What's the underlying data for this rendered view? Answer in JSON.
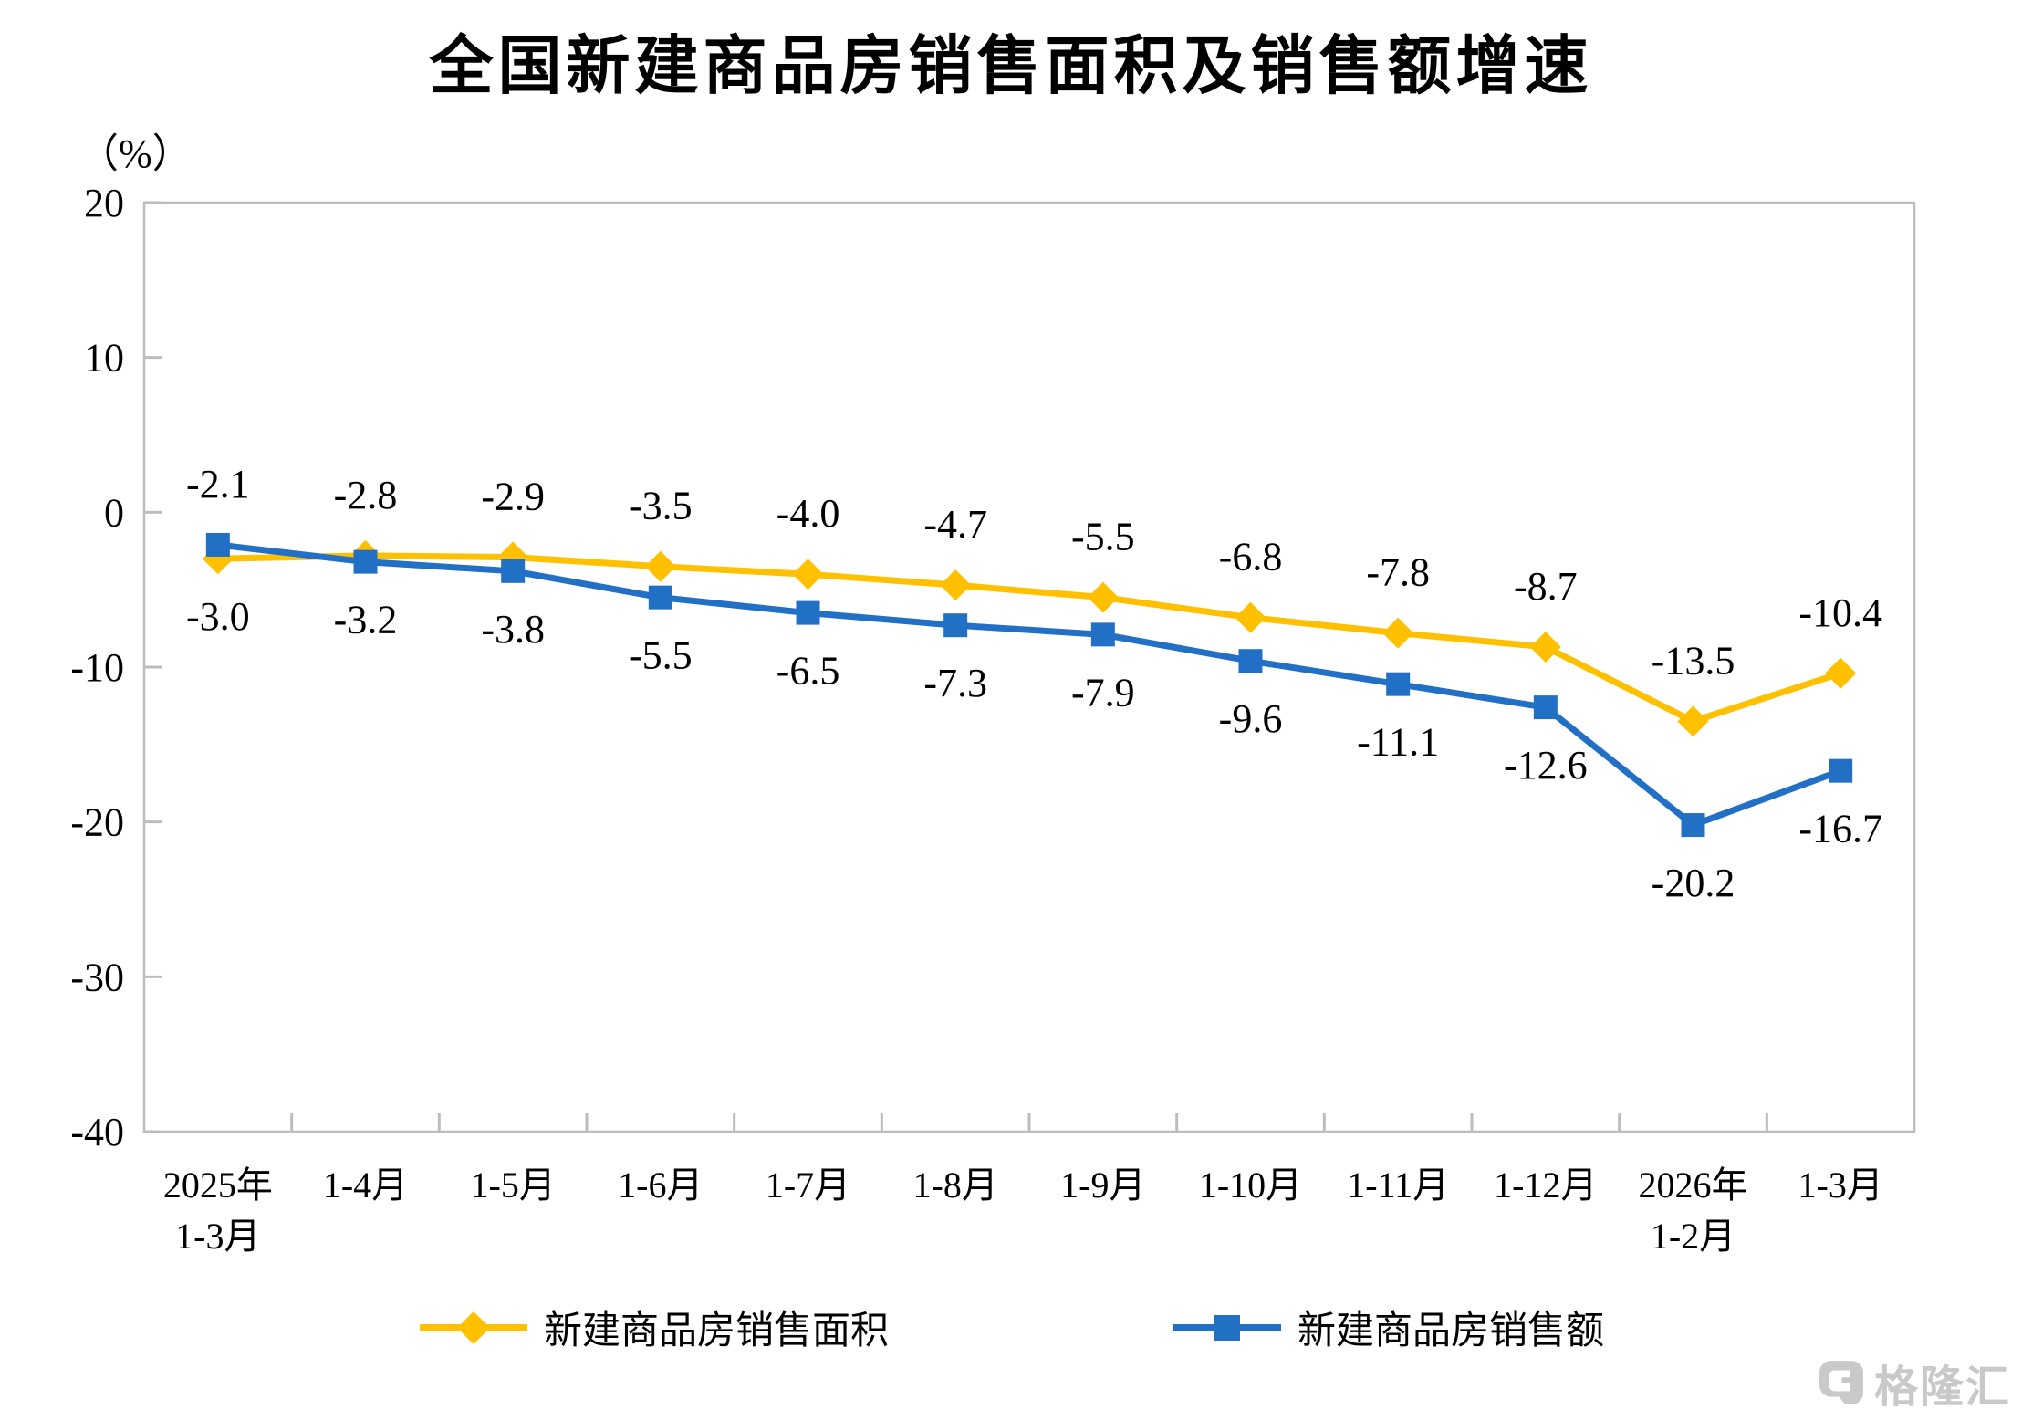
{
  "title": "全国新建商品房销售面积及销售额增速",
  "chart_data": {
    "type": "line",
    "title": "全国新建商品房销售面积及销售额增速",
    "unit": "（%）",
    "categories": [
      [
        "2025年",
        "1-3月"
      ],
      [
        "1-4月"
      ],
      [
        "1-5月"
      ],
      [
        "1-6月"
      ],
      [
        "1-7月"
      ],
      [
        "1-8月"
      ],
      [
        "1-9月"
      ],
      [
        "1-10月"
      ],
      [
        "1-11月"
      ],
      [
        "1-12月"
      ],
      [
        "2026年",
        "1-2月"
      ],
      [
        "1-3月"
      ]
    ],
    "series": [
      {
        "name": "新建商品房销售面积",
        "color": "#FFC000",
        "marker": "diamond",
        "values": [
          -3.0,
          -2.8,
          -2.9,
          -3.5,
          -4.0,
          -4.7,
          -5.5,
          -6.8,
          -7.8,
          -8.7,
          -13.5,
          -10.4
        ]
      },
      {
        "name": "新建商品房销售额",
        "color": "#2270C6",
        "marker": "square",
        "values": [
          -2.1,
          -3.2,
          -3.8,
          -5.5,
          -6.5,
          -7.3,
          -7.9,
          -9.6,
          -11.1,
          -12.6,
          -20.2,
          -16.7
        ]
      }
    ],
    "ylim": [
      -40,
      20
    ],
    "yticks": [
      20,
      10,
      0,
      -10,
      -20,
      -30,
      -40
    ],
    "grid": false,
    "legend_position": "bottom",
    "axis_color": "#BDBDBD",
    "label_color": "#000000",
    "value_decimals": 1
  },
  "watermark": {
    "brand": "格隆汇",
    "icon": "gelonghui-logo"
  }
}
